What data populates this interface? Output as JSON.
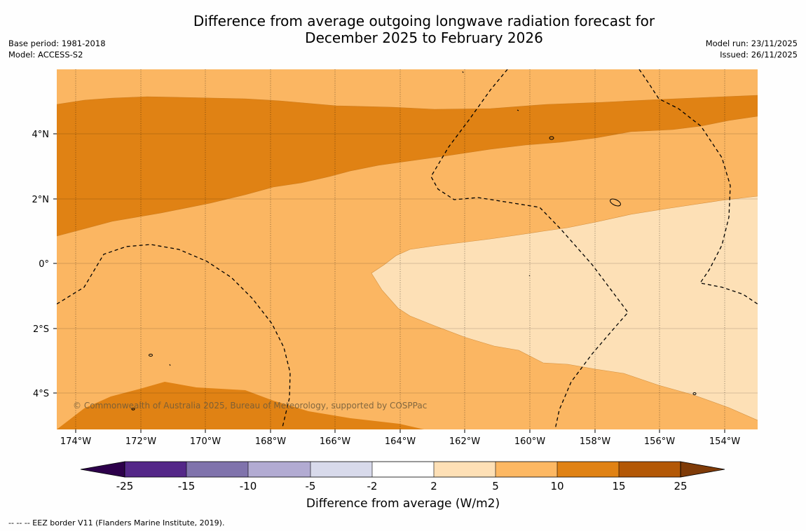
{
  "title_line1": "Difference from average outgoing longwave radiation forecast for",
  "title_line2": "December 2025 to February 2026",
  "meta_left": {
    "base_period": "Base period: 1981-2018",
    "model": "Model: ACCESS-S2"
  },
  "meta_right": {
    "model_run": "Model run: 23/11/2025",
    "issued": "Issued: 26/11/2025"
  },
  "map": {
    "lat_labels": [
      "4°N",
      "2°N",
      "0°",
      "2°S",
      "4°S"
    ],
    "lon_labels": [
      "174°W",
      "172°W",
      "170°W",
      "168°W",
      "166°W",
      "164°W",
      "162°W",
      "160°W",
      "158°W",
      "156°W",
      "154°W"
    ],
    "copyright": "© Commonwealth of Australia 2025, Bureau of Meteorology, supported by COSPPac",
    "band_colors": {
      "anom_2_5": "#fde0b6",
      "anom_5_10": "#fbb662",
      "anom_10_15": "#e08214"
    }
  },
  "colorbar": {
    "title": "Difference from average (W/m2)",
    "tick_labels": [
      "-25",
      "-15",
      "-10",
      "-5",
      "-2",
      "2",
      "5",
      "10",
      "15",
      "25"
    ],
    "colors": [
      "#2d004b",
      "#542788",
      "#8073ac",
      "#b2abd2",
      "#d8daeb",
      "#ffffff",
      "#fee0b6",
      "#fdb863",
      "#e08214",
      "#b35806",
      "#7f3b08"
    ]
  },
  "footnote": "-- -- -- EEZ border V11 (Flanders Marine Institute, 2019)."
}
